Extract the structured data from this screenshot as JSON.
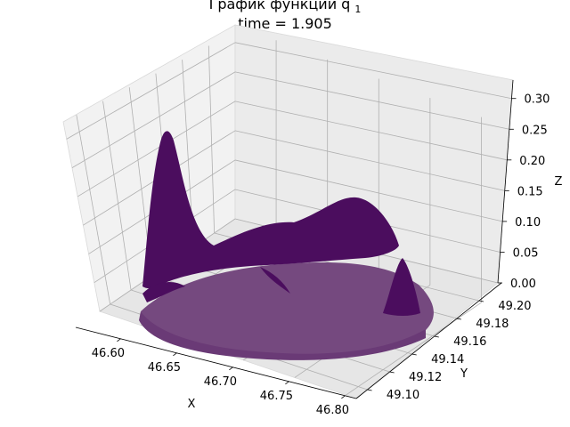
{
  "title": {
    "line1": "График функции q",
    "line1_subscript": "1",
    "line2": "time = 1.905"
  },
  "chart_data": {
    "type": "surface",
    "title": "График функции q1 / time = 1.905",
    "xlabel": "X",
    "ylabel": "Y",
    "zlabel": "Z",
    "x_ticks": [
      "46.60",
      "46.65",
      "46.70",
      "46.75",
      "46.80"
    ],
    "y_ticks": [
      "49.10",
      "49.12",
      "49.14",
      "49.16",
      "49.18",
      "49.20"
    ],
    "z_ticks": [
      "0.00",
      "0.05",
      "0.10",
      "0.15",
      "0.20",
      "0.25",
      "0.30"
    ],
    "xlim": [
      46.56,
      46.81
    ],
    "ylim": [
      49.09,
      49.22
    ],
    "zlim": [
      0.0,
      0.33
    ],
    "grid": true,
    "surface_color": "#4b0d5e",
    "surface_light_color": "#75497f",
    "peaks": [
      {
        "x": 46.59,
        "y": 49.19,
        "z": 0.27
      },
      {
        "x": 46.72,
        "y": 49.21,
        "z": 0.15
      },
      {
        "x": 46.67,
        "y": 49.2,
        "z": 0.11
      },
      {
        "x": 46.79,
        "y": 49.13,
        "z": 0.06
      }
    ]
  }
}
